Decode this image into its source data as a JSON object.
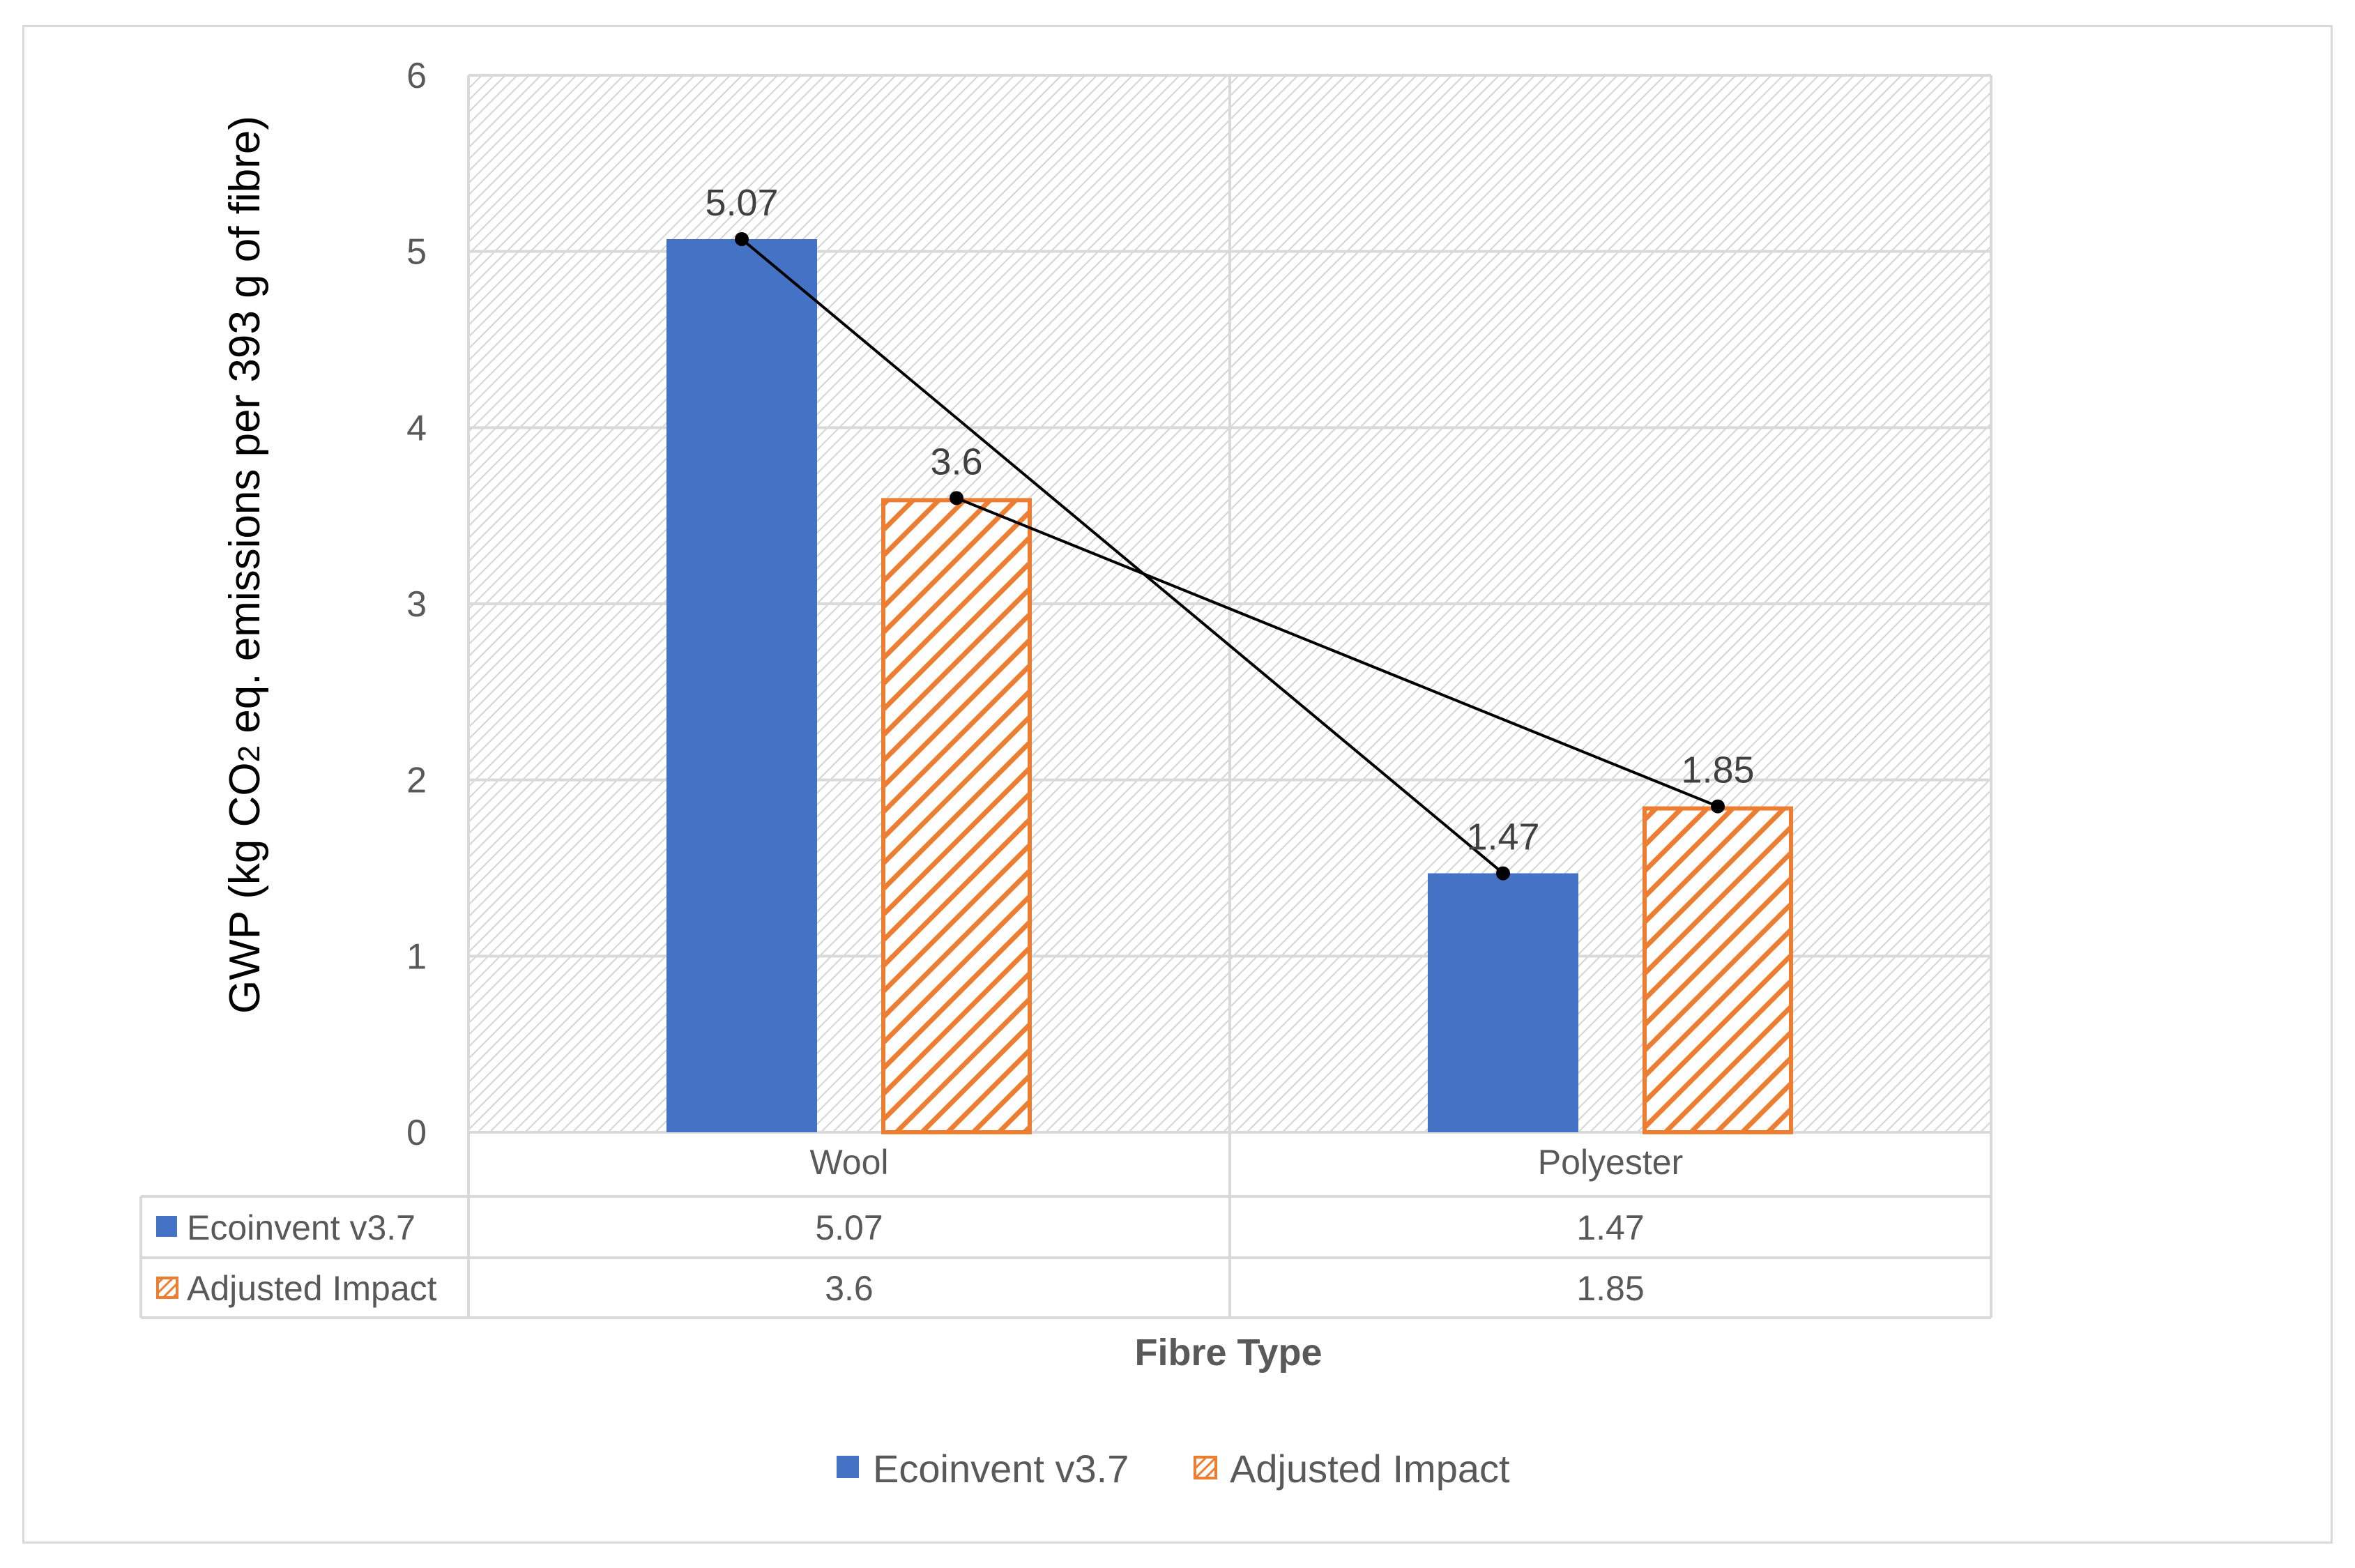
{
  "chart_data": {
    "type": "bar",
    "title": "",
    "xlabel": "Fibre Type",
    "ylabel_parts": [
      "GWP (kg CO",
      "2",
      " eq. emissions per 393 g of fibre)"
    ],
    "ylim": [
      0,
      6
    ],
    "yticks": [
      0,
      1,
      2,
      3,
      4,
      5,
      6
    ],
    "categories": [
      "Wool",
      "Polyester"
    ],
    "series": [
      {
        "name": "Ecoinvent v3.7",
        "values": [
          5.07,
          1.47
        ],
        "labels": [
          "5.07",
          "1.47"
        ],
        "color": "#4472C4",
        "pattern": "solid"
      },
      {
        "name": "Adjusted Impact",
        "values": [
          3.6,
          1.85
        ],
        "labels": [
          "3.6",
          "1.85"
        ],
        "color": "#ED7D31",
        "pattern": "diagonal-hatch"
      }
    ],
    "overlay_lines": "black lines with dot markers connecting each series' values across categories",
    "data_table": {
      "rows": [
        {
          "name": "Ecoinvent v3.7",
          "cells": [
            "5.07",
            "1.47"
          ]
        },
        {
          "name": "Adjusted Impact",
          "cells": [
            "3.6",
            "1.85"
          ]
        }
      ]
    },
    "legend": [
      "Ecoinvent v3.7",
      "Adjusted Impact"
    ],
    "legend_position": "bottom",
    "grid": true
  }
}
